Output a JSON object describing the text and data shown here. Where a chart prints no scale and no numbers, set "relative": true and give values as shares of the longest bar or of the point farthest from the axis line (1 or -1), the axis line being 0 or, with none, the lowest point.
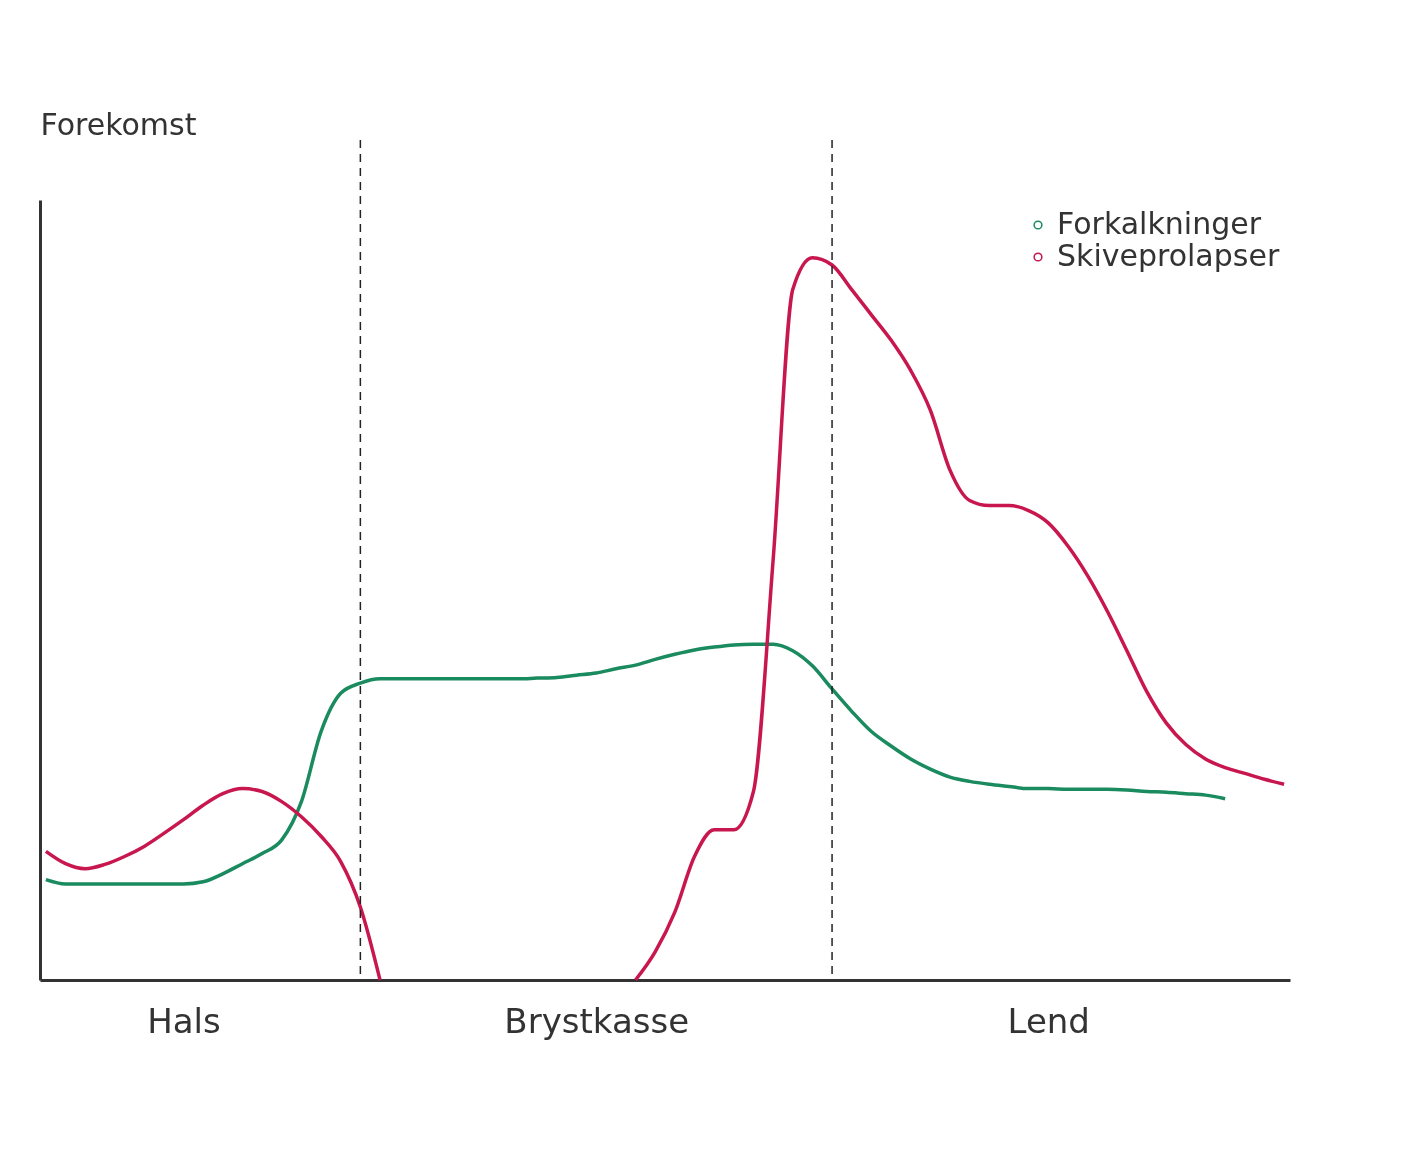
{
  "chart_data": {
    "type": "line",
    "relative": true,
    "ylabel": "Forekomst",
    "categories": [
      null,
      null,
      null,
      null,
      null,
      null,
      null,
      "Hals",
      null,
      null,
      null,
      null,
      null,
      null,
      null,
      null,
      null,
      null,
      null,
      null,
      null,
      null,
      null,
      null,
      null,
      null,
      null,
      null,
      "Brystkasse",
      null,
      null,
      null,
      null,
      null,
      null,
      null,
      null,
      null,
      null,
      null,
      null,
      null,
      null,
      null,
      null,
      null,
      null,
      null,
      null,
      null,
      null,
      "Lend",
      null,
      null,
      null,
      null,
      null,
      null,
      null,
      null,
      null,
      null,
      null,
      null
    ],
    "series": [
      {
        "name": "Forkalkninger",
        "color": "#1a8a5f",
        "values": [
          0.139,
          0.133,
          0.133,
          0.133,
          0.133,
          0.133,
          0.133,
          0.133,
          0.136,
          0.147,
          0.161,
          0.175,
          0.194,
          0.247,
          0.344,
          0.397,
          0.411,
          0.417,
          0.417,
          0.417,
          0.417,
          0.417,
          0.417,
          0.417,
          0.417,
          0.418,
          0.419,
          0.422,
          0.425,
          0.431,
          0.436,
          0.444,
          0.451,
          0.457,
          0.461,
          0.464,
          0.465,
          0.465,
          0.456,
          0.435,
          0.403,
          0.372,
          0.344,
          0.324,
          0.306,
          0.292,
          0.281,
          0.275,
          0.271,
          0.268,
          0.265,
          0.265,
          0.264,
          0.264,
          0.264,
          0.263,
          0.261,
          0.26,
          0.258,
          0.256,
          0.251,
          null,
          null,
          null
        ]
      },
      {
        "name": "Skiveprolapser",
        "color": "#c8174f",
        "values": [
          0.178,
          0.161,
          0.154,
          0.16,
          0.171,
          0.185,
          0.203,
          0.222,
          0.242,
          0.258,
          0.265,
          0.261,
          0.247,
          0.226,
          0.199,
          0.164,
          0.101,
          0,
          null,
          null,
          null,
          null,
          null,
          null,
          null,
          null,
          null,
          null,
          null,
          null,
          0,
          0.039,
          0.094,
          0.171,
          0.208,
          0.208,
          0.261,
          0.581,
          0.956,
          1.0,
          0.99,
          0.956,
          0.921,
          0.886,
          0.844,
          0.789,
          0.706,
          0.664,
          0.657,
          0.657,
          0.65,
          0.633,
          0.601,
          0.56,
          0.511,
          0.456,
          0.4,
          0.356,
          0.326,
          0.306,
          0.294,
          0.286,
          0.278,
          0.271
        ]
      }
    ],
    "legend": "top right",
    "grid": false,
    "marker": "none",
    "line_style": "solid"
  }
}
